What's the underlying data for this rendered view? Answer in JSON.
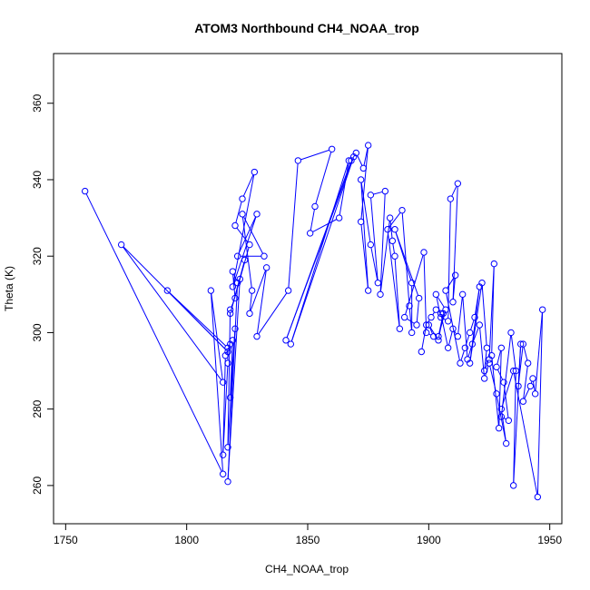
{
  "chart_data": {
    "type": "line",
    "title": "ATOM3 Northbound CH4_NOAA_trop",
    "xlabel": "CH4_NOAA_trop",
    "ylabel": "Theta (K)",
    "xlim": [
      1745,
      1955
    ],
    "ylim": [
      250,
      373
    ],
    "xticks": [
      1750,
      1800,
      1850,
      1900,
      1950
    ],
    "yticks": [
      260,
      280,
      300,
      320,
      340,
      360
    ],
    "grid": false,
    "marker": "open-circle",
    "color": "#0000ff",
    "series": [
      {
        "x": [
          1758,
          1815,
          1810,
          1815,
          1773,
          1817,
          1792,
          1817,
          1817,
          1815,
          1816,
          1818,
          1819,
          1818,
          1820,
          1817,
          1818,
          1820,
          1819,
          1821,
          1817,
          1822,
          1824,
          1818,
          1826,
          1820,
          1823,
          1828,
          1819,
          1829,
          1821,
          1832,
          1823,
          1827,
          1826,
          1833,
          1829,
          1842,
          1846,
          1860,
          1853,
          1851,
          1863,
          1867,
          1843,
          1869,
          1841,
          1868,
          1870,
          1873,
          1875,
          1872,
          1875,
          1872,
          1876,
          1879,
          1876,
          1882,
          1880,
          1884,
          1885,
          1886,
          1888,
          1883,
          1889,
          1892,
          1893,
          1893,
          1886,
          1896,
          1895,
          1890,
          1898,
          1899,
          1902,
          1900,
          1904,
          1906,
          1904,
          1907,
          1903,
          1905,
          1908,
          1909,
          1912,
          1910,
          1911,
          1907,
          1913,
          1915,
          1917,
          1919,
          1921,
          1917,
          1922,
          1924,
          1923,
          1925,
          1927,
          1926,
          1929,
          1930,
          1928,
          1931,
          1933,
          1930,
          1934,
          1936,
          1935,
          1938,
          1937,
          1939,
          1941,
          1939,
          1942,
          1943,
          1944,
          1947,
          1945,
          1935,
          1930,
          1932,
          1928,
          1925,
          1923,
          1921,
          1918,
          1916,
          1914,
          1912,
          1910,
          1908,
          1905,
          1903,
          1901,
          1899,
          1897
        ],
        "y": [
          337,
          263,
          311,
          287,
          323,
          295,
          311,
          296,
          292,
          268,
          294,
          297,
          298,
          283,
          301,
          270,
          306,
          309,
          316,
          313,
          261,
          314,
          319,
          305,
          323,
          328,
          335,
          342,
          312,
          331,
          320,
          320,
          331,
          311,
          305,
          317,
          299,
          311,
          345,
          348,
          333,
          326,
          330,
          345,
          297,
          346,
          298,
          345,
          347,
          343,
          349,
          329,
          311,
          340,
          323,
          313,
          336,
          337,
          310,
          330,
          324,
          320,
          301,
          327,
          332,
          307,
          300,
          313,
          327,
          309,
          302,
          304,
          321,
          300,
          299,
          302,
          298,
          305,
          299,
          306,
          310,
          304,
          303,
          335,
          339,
          308,
          315,
          311,
          292,
          296,
          300,
          304,
          312,
          292,
          313,
          296,
          290,
          293,
          318,
          294,
          275,
          296,
          291,
          287,
          277,
          278,
          300,
          290,
          260,
          297,
          286,
          297,
          292,
          282,
          286,
          288,
          284,
          306,
          257,
          290,
          280,
          271,
          284,
          292,
          288,
          302,
          297,
          293,
          310,
          299,
          301,
          296,
          305,
          306,
          304,
          302,
          295
        ]
      }
    ]
  }
}
